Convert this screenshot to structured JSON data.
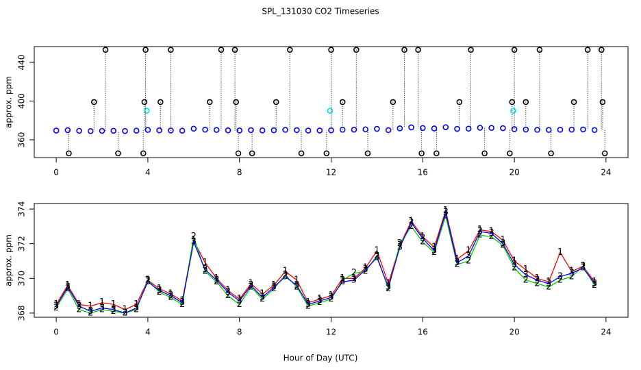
{
  "chart_data": [
    {
      "type": "scatter",
      "title": "SPL_131030  CO2 Timeseries",
      "y_label": "approx. ppm",
      "xlim": [
        -0.96,
        24.96
      ],
      "ylim": [
        341.6,
        456.3
      ],
      "xticks": [
        0,
        4,
        8,
        12,
        16,
        20,
        24
      ],
      "yticks": [
        360,
        400,
        440
      ],
      "series": [
        {
          "color": "#0000ff",
          "x": [
            0,
            0.5,
            1,
            1.5,
            2,
            2.5,
            3,
            3.5,
            4,
            4.5,
            5,
            5.5,
            6,
            6.5,
            7,
            7.5,
            8,
            8.5,
            9,
            9.5,
            10,
            10.5,
            11,
            11.5,
            12,
            12.5,
            13,
            13.5,
            14,
            14.5,
            15,
            15.5,
            16,
            16.5,
            17,
            17.5,
            18,
            18.5,
            19,
            19.5,
            20,
            20.5,
            21,
            21.5,
            22,
            22.5,
            23,
            23.5
          ],
          "values": [
            369.5,
            370.0,
            369.3,
            369.0,
            369.2,
            369.3,
            369.1,
            369.4,
            370.2,
            369.8,
            369.6,
            369.4,
            371.5,
            370.5,
            370.2,
            369.8,
            369.6,
            370.0,
            369.7,
            369.9,
            370.3,
            370.0,
            369.5,
            369.6,
            369.8,
            370.4,
            370.5,
            370.8,
            371.3,
            370.0,
            371.8,
            372.8,
            372.2,
            371.7,
            373.0,
            371.3,
            371.5,
            372.4,
            372.3,
            372.0,
            371.0,
            370.6,
            370.3,
            370.2,
            370.4,
            370.5,
            370.7,
            370.1
          ]
        },
        {
          "color": "#000000",
          "dropline": true,
          "x": [
            2.15,
            3.9,
            5.0,
            7.2,
            7.8,
            10.2,
            12.0,
            13.1,
            15.2,
            15.8,
            18.1,
            20.0,
            21.1,
            23.2,
            23.8,
            1.65,
            3.85,
            4.55,
            6.7,
            7.85,
            9.6,
            12.5,
            14.7,
            17.6,
            19.9,
            20.5,
            22.6,
            23.85,
            0.55,
            2.7,
            3.8,
            7.95,
            8.55,
            10.7,
            11.8,
            13.6,
            15.95,
            16.6,
            18.7,
            19.8,
            21.6,
            23.95
          ],
          "values": [
            453,
            453,
            453,
            453,
            453,
            453,
            453,
            453,
            453,
            453,
            453,
            453,
            453,
            453,
            453,
            399,
            399,
            399,
            399,
            399,
            399,
            399,
            399,
            399,
            399,
            399,
            399,
            399,
            346,
            346,
            346,
            346,
            346,
            346,
            346,
            346,
            346,
            346,
            346,
            346,
            346,
            346
          ]
        },
        {
          "color": "#00e0e0",
          "x": [
            3.95,
            11.95,
            19.95
          ],
          "values": [
            390,
            390,
            390
          ]
        }
      ]
    },
    {
      "type": "line",
      "y_label": "approx. ppm",
      "x_label": "Hour of Day (UTC)",
      "xlim": [
        -0.96,
        24.96
      ],
      "ylim": [
        367.76,
        374.32
      ],
      "xticks": [
        0,
        4,
        8,
        12,
        16,
        20,
        24
      ],
      "yticks": [
        368,
        370,
        372,
        374
      ],
      "x": [
        0,
        0.5,
        1,
        1.5,
        2,
        2.5,
        3,
        3.5,
        4,
        4.5,
        5,
        5.5,
        6,
        6.5,
        7,
        7.5,
        8,
        8.5,
        9,
        9.5,
        10,
        10.5,
        11,
        11.5,
        12,
        12.5,
        13,
        13.5,
        14,
        14.5,
        15,
        15.5,
        16,
        16.5,
        17,
        17.5,
        18,
        18.5,
        19,
        19.5,
        20,
        20.5,
        21,
        21.5,
        22,
        22.5,
        23,
        23.5
      ],
      "series": [
        {
          "name": "1",
          "color": "#ff0000",
          "values": [
            368.5,
            369.6,
            368.5,
            368.4,
            368.6,
            368.5,
            368.2,
            368.5,
            369.9,
            369.4,
            369.1,
            368.7,
            372.2,
            370.9,
            370.0,
            369.3,
            368.8,
            369.7,
            369.1,
            369.6,
            370.4,
            369.9,
            368.6,
            368.8,
            369.0,
            370.0,
            370.0,
            370.6,
            371.6,
            369.7,
            371.9,
            373.3,
            372.4,
            371.8,
            373.9,
            371.1,
            371.6,
            372.8,
            372.7,
            372.2,
            371.0,
            370.5,
            370.0,
            369.8,
            371.5,
            370.4,
            370.7,
            369.8
          ]
        },
        {
          "name": "2",
          "color": "#00cc00",
          "values": [
            368.3,
            369.4,
            368.2,
            368.0,
            368.2,
            368.1,
            368.0,
            368.2,
            369.9,
            369.2,
            368.9,
            368.5,
            372.4,
            370.4,
            369.8,
            369.0,
            368.5,
            369.5,
            368.8,
            369.4,
            370.2,
            369.5,
            368.4,
            368.6,
            368.8,
            369.9,
            370.3,
            370.4,
            371.3,
            369.4,
            372.0,
            373.0,
            372.1,
            371.5,
            373.6,
            370.8,
            371.0,
            372.5,
            372.4,
            371.9,
            370.6,
            369.9,
            369.7,
            369.5,
            369.9,
            370.1,
            370.7,
            369.6
          ]
        },
        {
          "name": "3",
          "color": "#0000ff",
          "values": [
            368.4,
            369.5,
            368.4,
            368.1,
            368.3,
            368.2,
            368.0,
            368.3,
            369.8,
            369.3,
            369.0,
            368.6,
            372.1,
            370.5,
            369.9,
            369.2,
            368.7,
            369.6,
            368.9,
            369.5,
            370.1,
            369.6,
            368.5,
            368.7,
            368.9,
            369.8,
            369.9,
            370.5,
            371.2,
            369.5,
            371.8,
            373.2,
            372.3,
            371.6,
            373.8,
            370.9,
            371.3,
            372.7,
            372.6,
            372.0,
            370.8,
            370.2,
            369.9,
            369.7,
            370.1,
            370.3,
            370.6,
            369.7
          ]
        }
      ]
    }
  ]
}
